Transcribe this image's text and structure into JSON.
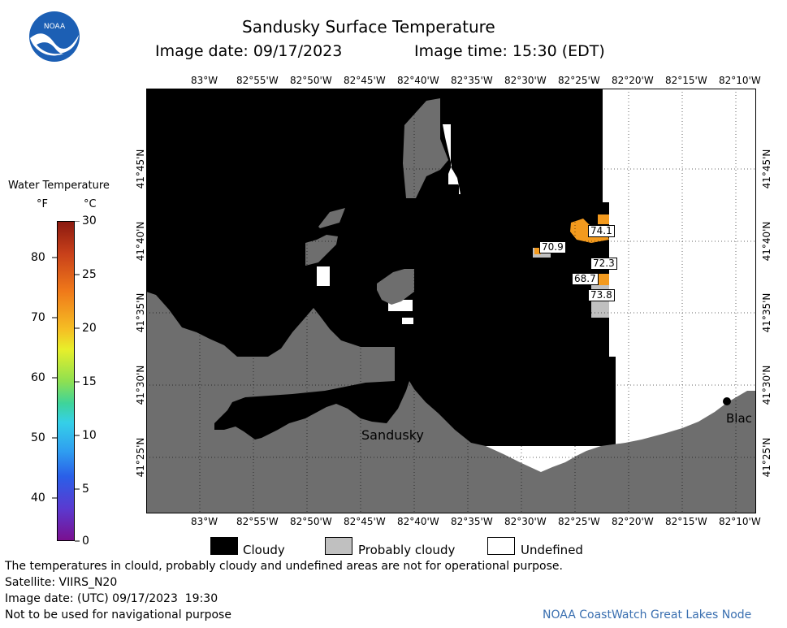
{
  "header": {
    "title": "Sandusky Surface Temperature",
    "image_date": "Image date: 09/17/2023",
    "image_time": "Image time: 15:30 (EDT)",
    "logo_text": "NOAA"
  },
  "colorbar": {
    "title": "Water Temperature",
    "unit_f": "°F",
    "unit_c": "°C",
    "f_ticks": [
      "80",
      "70",
      "60",
      "50",
      "40"
    ],
    "c_ticks": [
      "30",
      "25",
      "20",
      "15",
      "10",
      "5",
      "0"
    ]
  },
  "axes": {
    "lon_ticks": [
      "83°W",
      "82°55'W",
      "82°50'W",
      "82°45'W",
      "82°40'W",
      "82°35'W",
      "82°30'W",
      "82°25'W",
      "82°20'W",
      "82°15'W",
      "82°10'W"
    ],
    "lat_ticks": [
      "41°45'N",
      "41°40'N",
      "41°35'N",
      "41°30'N",
      "41°25'N"
    ]
  },
  "map": {
    "city_label": "Sandusky",
    "edge_city_label": "Blac",
    "temperature_labels": [
      "74.1",
      "70.9",
      "72.3",
      "68.7",
      "73.8"
    ]
  },
  "legend": {
    "items": [
      {
        "label": "Cloudy",
        "color": "#000000"
      },
      {
        "label": "Probably cloudy",
        "color": "#c0c0c0"
      },
      {
        "label": "Undefined",
        "color": "#ffffff"
      }
    ]
  },
  "footer": {
    "disclaimer": "The temperatures in clould, probably cloudy and undefined areas are not for operational purpose.",
    "satellite": "Satellite: VIIRS_N20",
    "utc_date": "Image date: (UTC) 09/17/2023  19:30",
    "navigation": "Not to be used for navigational purpose",
    "credit": "NOAA CoastWatch Great Lakes Node"
  },
  "colors": {
    "land": "#6e6e6e",
    "cloud": "#000000",
    "warm_water": "#f39a1e",
    "credit": "#3a6fb0"
  }
}
